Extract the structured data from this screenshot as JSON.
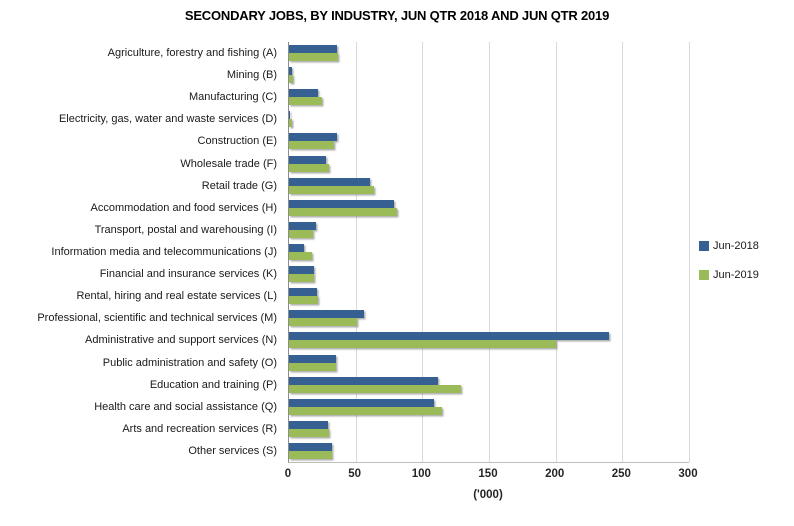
{
  "chart_data": {
    "type": "bar",
    "orientation": "horizontal",
    "title": "SECONDARY JOBS, BY INDUSTRY, JUN QTR 2018 AND JUN QTR 2019",
    "categories": [
      "Agriculture, forestry and fishing (A)",
      "Mining (B)",
      "Manufacturing (C)",
      "Electricity, gas, water and waste services (D)",
      "Construction (E)",
      "Wholesale trade (F)",
      "Retail trade (G)",
      "Accommodation and food services (H)",
      "Transport, postal and warehousing (I)",
      "Information media and telecommunications (J)",
      "Financial and insurance services (K)",
      "Rental, hiring and real estate services (L)",
      "Professional, scientific and technical services (M)",
      "Administrative and support services (N)",
      "Public administration and safety (O)",
      "Education and training (P)",
      "Health care and social assistance (Q)",
      "Arts and recreation services (R)",
      "Other services (S)"
    ],
    "series": [
      {
        "name": "Jun-2018",
        "color": "#376092",
        "values": [
          36,
          2,
          22,
          1,
          36,
          28,
          61,
          79,
          20,
          11,
          19,
          21,
          56,
          240,
          35,
          112,
          109,
          29,
          32
        ]
      },
      {
        "name": "Jun-2019",
        "color": "#9BBB59",
        "values": [
          37,
          3,
          25,
          2,
          34,
          30,
          64,
          81,
          18,
          17,
          19,
          22,
          51,
          200,
          35,
          129,
          115,
          30,
          32
        ]
      }
    ],
    "xlabel": "('000)",
    "xlim": [
      0,
      300
    ],
    "xticks": [
      0,
      50,
      100,
      150,
      200,
      250,
      300
    ],
    "grid": true,
    "legend_position": "right",
    "colors": {
      "gridline": "#D9D9D9",
      "y_axis_line": "#8C8C8C",
      "x_axis_line": "#BFBFBF"
    }
  }
}
